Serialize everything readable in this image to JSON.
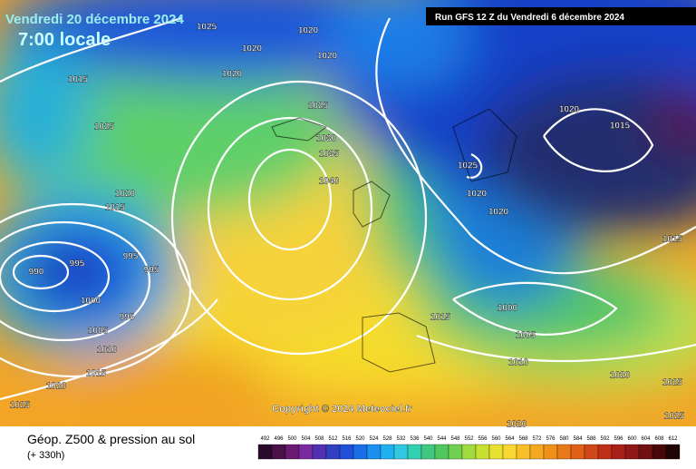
{
  "header": {
    "date": "Vendredi 20 décembre 2024",
    "time": "7:00 locale",
    "run": "Run GFS 12 Z du Vendredi 6 décembre 2024",
    "copyright": "Copyright © 2024 Meteociel.fr"
  },
  "footer": {
    "title": "Géop. Z500 & pression au sol",
    "lead": "(+ 330h)",
    "scale": [
      492,
      496,
      500,
      504,
      508,
      512,
      516,
      520,
      524,
      528,
      532,
      536,
      540,
      544,
      548,
      552,
      556,
      560,
      564,
      568,
      572,
      576,
      580,
      584,
      588,
      592,
      596,
      600,
      604,
      608,
      612
    ]
  },
  "isobars": [
    "1025",
    "1020",
    "1020",
    "1020",
    "1020",
    "1015",
    "1025",
    "1020",
    "1015",
    "1025",
    "1030",
    "1035",
    "1040",
    "1025",
    "1020",
    "1020",
    "1020",
    "1015",
    "1015",
    "995",
    "990",
    "995",
    "995",
    "1000",
    "995",
    "1005",
    "1010",
    "1015",
    "1020",
    "1025",
    "1015",
    "1000",
    "1005",
    "1010",
    "1020",
    "1025",
    "1025",
    "1020"
  ]
}
